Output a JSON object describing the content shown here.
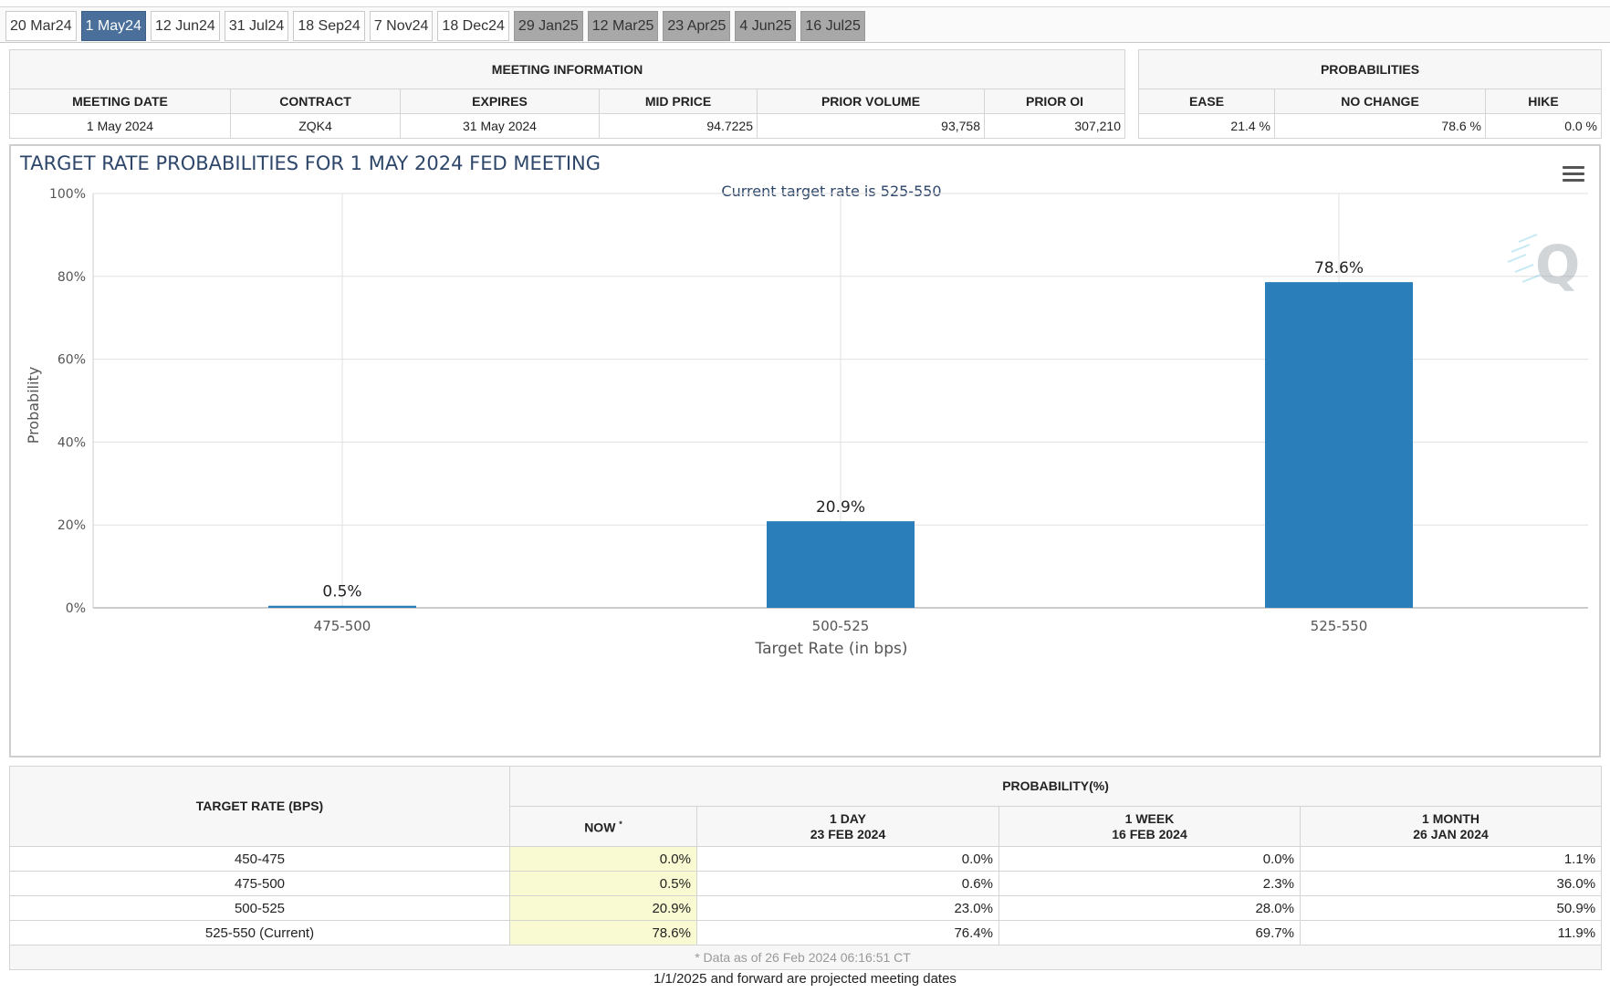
{
  "tabs": [
    {
      "label": "20 Mar24",
      "state": "normal"
    },
    {
      "label": "1 May24",
      "state": "active"
    },
    {
      "label": "12 Jun24",
      "state": "normal"
    },
    {
      "label": "31 Jul24",
      "state": "normal"
    },
    {
      "label": "18 Sep24",
      "state": "normal"
    },
    {
      "label": "7 Nov24",
      "state": "normal"
    },
    {
      "label": "18 Dec24",
      "state": "normal"
    },
    {
      "label": "29 Jan25",
      "state": "future"
    },
    {
      "label": "12 Mar25",
      "state": "future"
    },
    {
      "label": "23 Apr25",
      "state": "future"
    },
    {
      "label": "4 Jun25",
      "state": "future"
    },
    {
      "label": "16 Jul25",
      "state": "future"
    }
  ],
  "meeting_info": {
    "caption": "MEETING INFORMATION",
    "headers": [
      "MEETING DATE",
      "CONTRACT",
      "EXPIRES",
      "MID PRICE",
      "PRIOR VOLUME",
      "PRIOR OI"
    ],
    "values": [
      "1 May 2024",
      "ZQK4",
      "31 May 2024",
      "94.7225",
      "93,758",
      "307,210"
    ]
  },
  "probabilities": {
    "caption": "PROBABILITIES",
    "headers": [
      "EASE",
      "NO CHANGE",
      "HIKE"
    ],
    "values": [
      "21.4 %",
      "78.6 %",
      "0.0 %"
    ]
  },
  "chart_data": {
    "type": "bar",
    "title": "TARGET RATE PROBABILITIES FOR 1 MAY 2024 FED MEETING",
    "subtitle": "Current target rate is 525-550",
    "xlabel": "Target Rate (in bps)",
    "ylabel": "Probability",
    "categories": [
      "475-500",
      "500-525",
      "525-550"
    ],
    "values": [
      0.5,
      20.9,
      78.6
    ],
    "data_labels": [
      "0.5%",
      "20.9%",
      "78.6%"
    ],
    "ylim": [
      0,
      100
    ],
    "yticks": [
      "0%",
      "20%",
      "40%",
      "60%",
      "80%",
      "100%"
    ],
    "grid": true,
    "bar_color": "#2a7fba"
  },
  "probability_table": {
    "col_target": "TARGET RATE (BPS)",
    "caption": "PROBABILITY(%)",
    "now_label": "NOW",
    "now_mark": "*",
    "day_label": "1 DAY",
    "day_date": "23 FEB 2024",
    "week_label": "1 WEEK",
    "week_date": "16 FEB 2024",
    "month_label": "1 MONTH",
    "month_date": "26 JAN 2024",
    "rows": [
      {
        "rate": "450-475",
        "now": "0.0%",
        "day": "0.0%",
        "week": "0.0%",
        "month": "1.1%"
      },
      {
        "rate": "475-500",
        "now": "0.5%",
        "day": "0.6%",
        "week": "2.3%",
        "month": "36.0%"
      },
      {
        "rate": "500-525",
        "now": "20.9%",
        "day": "23.0%",
        "week": "28.0%",
        "month": "50.9%"
      },
      {
        "rate": "525-550 (Current)",
        "now": "78.6%",
        "day": "76.4%",
        "week": "69.7%",
        "month": "11.9%"
      }
    ],
    "note": "* Data as of 26 Feb 2024 06:16:51 CT"
  },
  "footer": "1/1/2025 and forward are projected meeting dates",
  "icons": {
    "menu": "hamburger-menu-icon",
    "watermark": "quikstrike-q-logo"
  }
}
